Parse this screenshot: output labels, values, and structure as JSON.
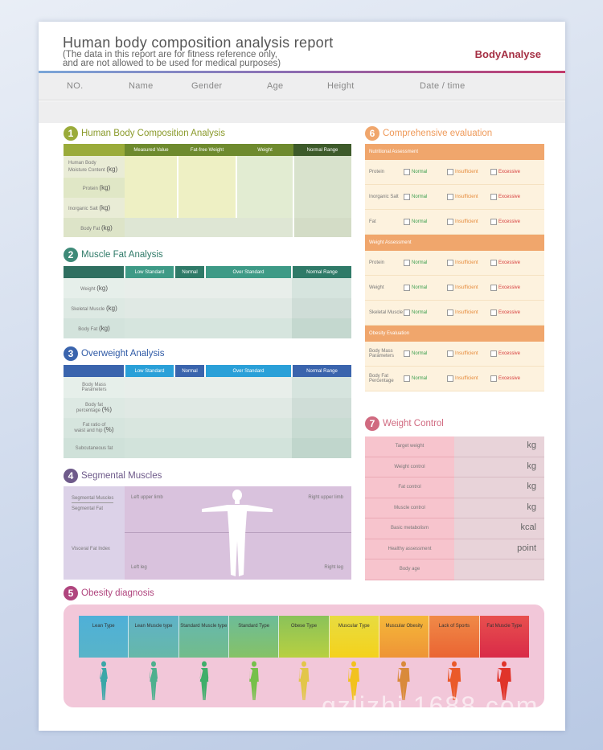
{
  "header": {
    "title": "Human body composition analysis report",
    "subtitle_line1": "(The data in this report are for fitness reference only,",
    "subtitle_line2": "and are not allowed to be used for medical purposes)",
    "brand": "BodyAnalyse"
  },
  "info_fields": [
    "NO.",
    "Name",
    "Gender",
    "Age",
    "Height",
    "Date / time"
  ],
  "s1": {
    "num": "1",
    "title": "Human Body Composition Analysis",
    "cols": [
      "Measured Value",
      "Fat-free Weight",
      "Weight",
      "Normal Range"
    ],
    "rows": [
      {
        "label_a": "Human Body",
        "label_b": "Moisture Content",
        "unit": "(kg)"
      },
      {
        "label_a": "Protein",
        "label_b": "",
        "unit": "(kg)"
      },
      {
        "label_a": "Inorganic Salt",
        "label_b": "",
        "unit": "(kg)"
      },
      {
        "label_a": "Body Fat",
        "label_b": "",
        "unit": "(kg)"
      }
    ]
  },
  "s2": {
    "num": "2",
    "title": "Muscle Fat Analysis",
    "cols": [
      "Low Standard",
      "Normal",
      "Over Standard",
      "Normal Range"
    ],
    "rows": [
      {
        "label": "Weight",
        "unit": "(kg)"
      },
      {
        "label": "Skeletal Muscle",
        "unit": "(kg)"
      },
      {
        "label": "Body Fat",
        "unit": "(kg)"
      }
    ]
  },
  "s3": {
    "num": "3",
    "title": "Overweight Analysis",
    "cols": [
      "Low Standard",
      "Normal",
      "Over Standard",
      "Normal Range"
    ],
    "rows": [
      {
        "label_a": "Body Mass",
        "label_b": "Parameters",
        "unit": ""
      },
      {
        "label_a": "Body fat",
        "label_b": "percentage",
        "unit": "(%)"
      },
      {
        "label_a": "Fat ratio of",
        "label_b": "waist and hip",
        "unit": "(%)"
      },
      {
        "label_a": "Subcutaneous fat",
        "label_b": "",
        "unit": ""
      }
    ]
  },
  "s4": {
    "num": "4",
    "title": "Segmental Muscles",
    "left_labels": [
      "Segmental Muscles",
      "Segmental Fat",
      "Visceral Fat Index"
    ],
    "left_upper_limb": "Left upper limb",
    "right_upper_limb": "Right upper limb",
    "left_leg": "Left leg",
    "right_leg": "Right leg"
  },
  "s5": {
    "num": "5",
    "title": "Obesity diagnosis",
    "types": [
      "Lean Type",
      "Lean Muscle type",
      "Standard Muscle type",
      "Standard Type",
      "Obese Type",
      "Muscular Type",
      "Muscular Obesity",
      "Lack of Sports",
      "Fat Muscle Type"
    ],
    "type_colors": [
      "#4fb0d8",
      "#5fb7a8",
      "#6cba8a",
      "#7bc070",
      "#a3c94a",
      "#f0d93a",
      "#f2a23a",
      "#ee6b3a",
      "#e0344a"
    ],
    "figure_colors": [
      "#3aa7a8",
      "#4db08e",
      "#3fae6a",
      "#76c04a",
      "#e2c64a",
      "#f2c21e",
      "#d98a3a",
      "#ea5a2a",
      "#e0342a"
    ]
  },
  "s6": {
    "num": "6",
    "title": "Comprehensive evaluation",
    "options": [
      "Normal",
      "Insufficient",
      "Excessive"
    ],
    "groups": [
      {
        "name": "Nutritional Assessment",
        "items": [
          {
            "a": "Protein",
            "b": ""
          },
          {
            "a": "Inorganic Salt",
            "b": ""
          },
          {
            "a": "Fat",
            "b": ""
          }
        ]
      },
      {
        "name": "Weight Assessment",
        "items": [
          {
            "a": "Protein",
            "b": ""
          },
          {
            "a": "Weight",
            "b": ""
          },
          {
            "a": "Skeletal Muscle",
            "b": ""
          }
        ]
      },
      {
        "name": "Obesity Evaluation",
        "items": [
          {
            "a": "Body Mass",
            "b": "Parameters"
          },
          {
            "a": "Body Fat",
            "b": "Percentage"
          }
        ]
      }
    ]
  },
  "s7": {
    "num": "7",
    "title": "Weight Control",
    "rows": [
      {
        "label": "Target weight",
        "unit": "kg"
      },
      {
        "label": "Weight control",
        "unit": "kg"
      },
      {
        "label": "Fat control",
        "unit": "kg"
      },
      {
        "label": "Muscle control",
        "unit": "kg"
      },
      {
        "label": "Basic metabolism",
        "unit": "kcal"
      },
      {
        "label": "Healthy assessment",
        "unit": "point"
      },
      {
        "label": "Body age",
        "unit": ""
      }
    ]
  },
  "colors": {
    "s1": "#9aab3a",
    "s2": "#3e8a78",
    "s3": "#3a64ad",
    "s4": "#6e5a8a",
    "s5": "#b0457e",
    "s6": "#f0a66c",
    "s7": "#d06a80",
    "brand": "#a53044"
  },
  "watermark": "gzlizhi.1688.com"
}
